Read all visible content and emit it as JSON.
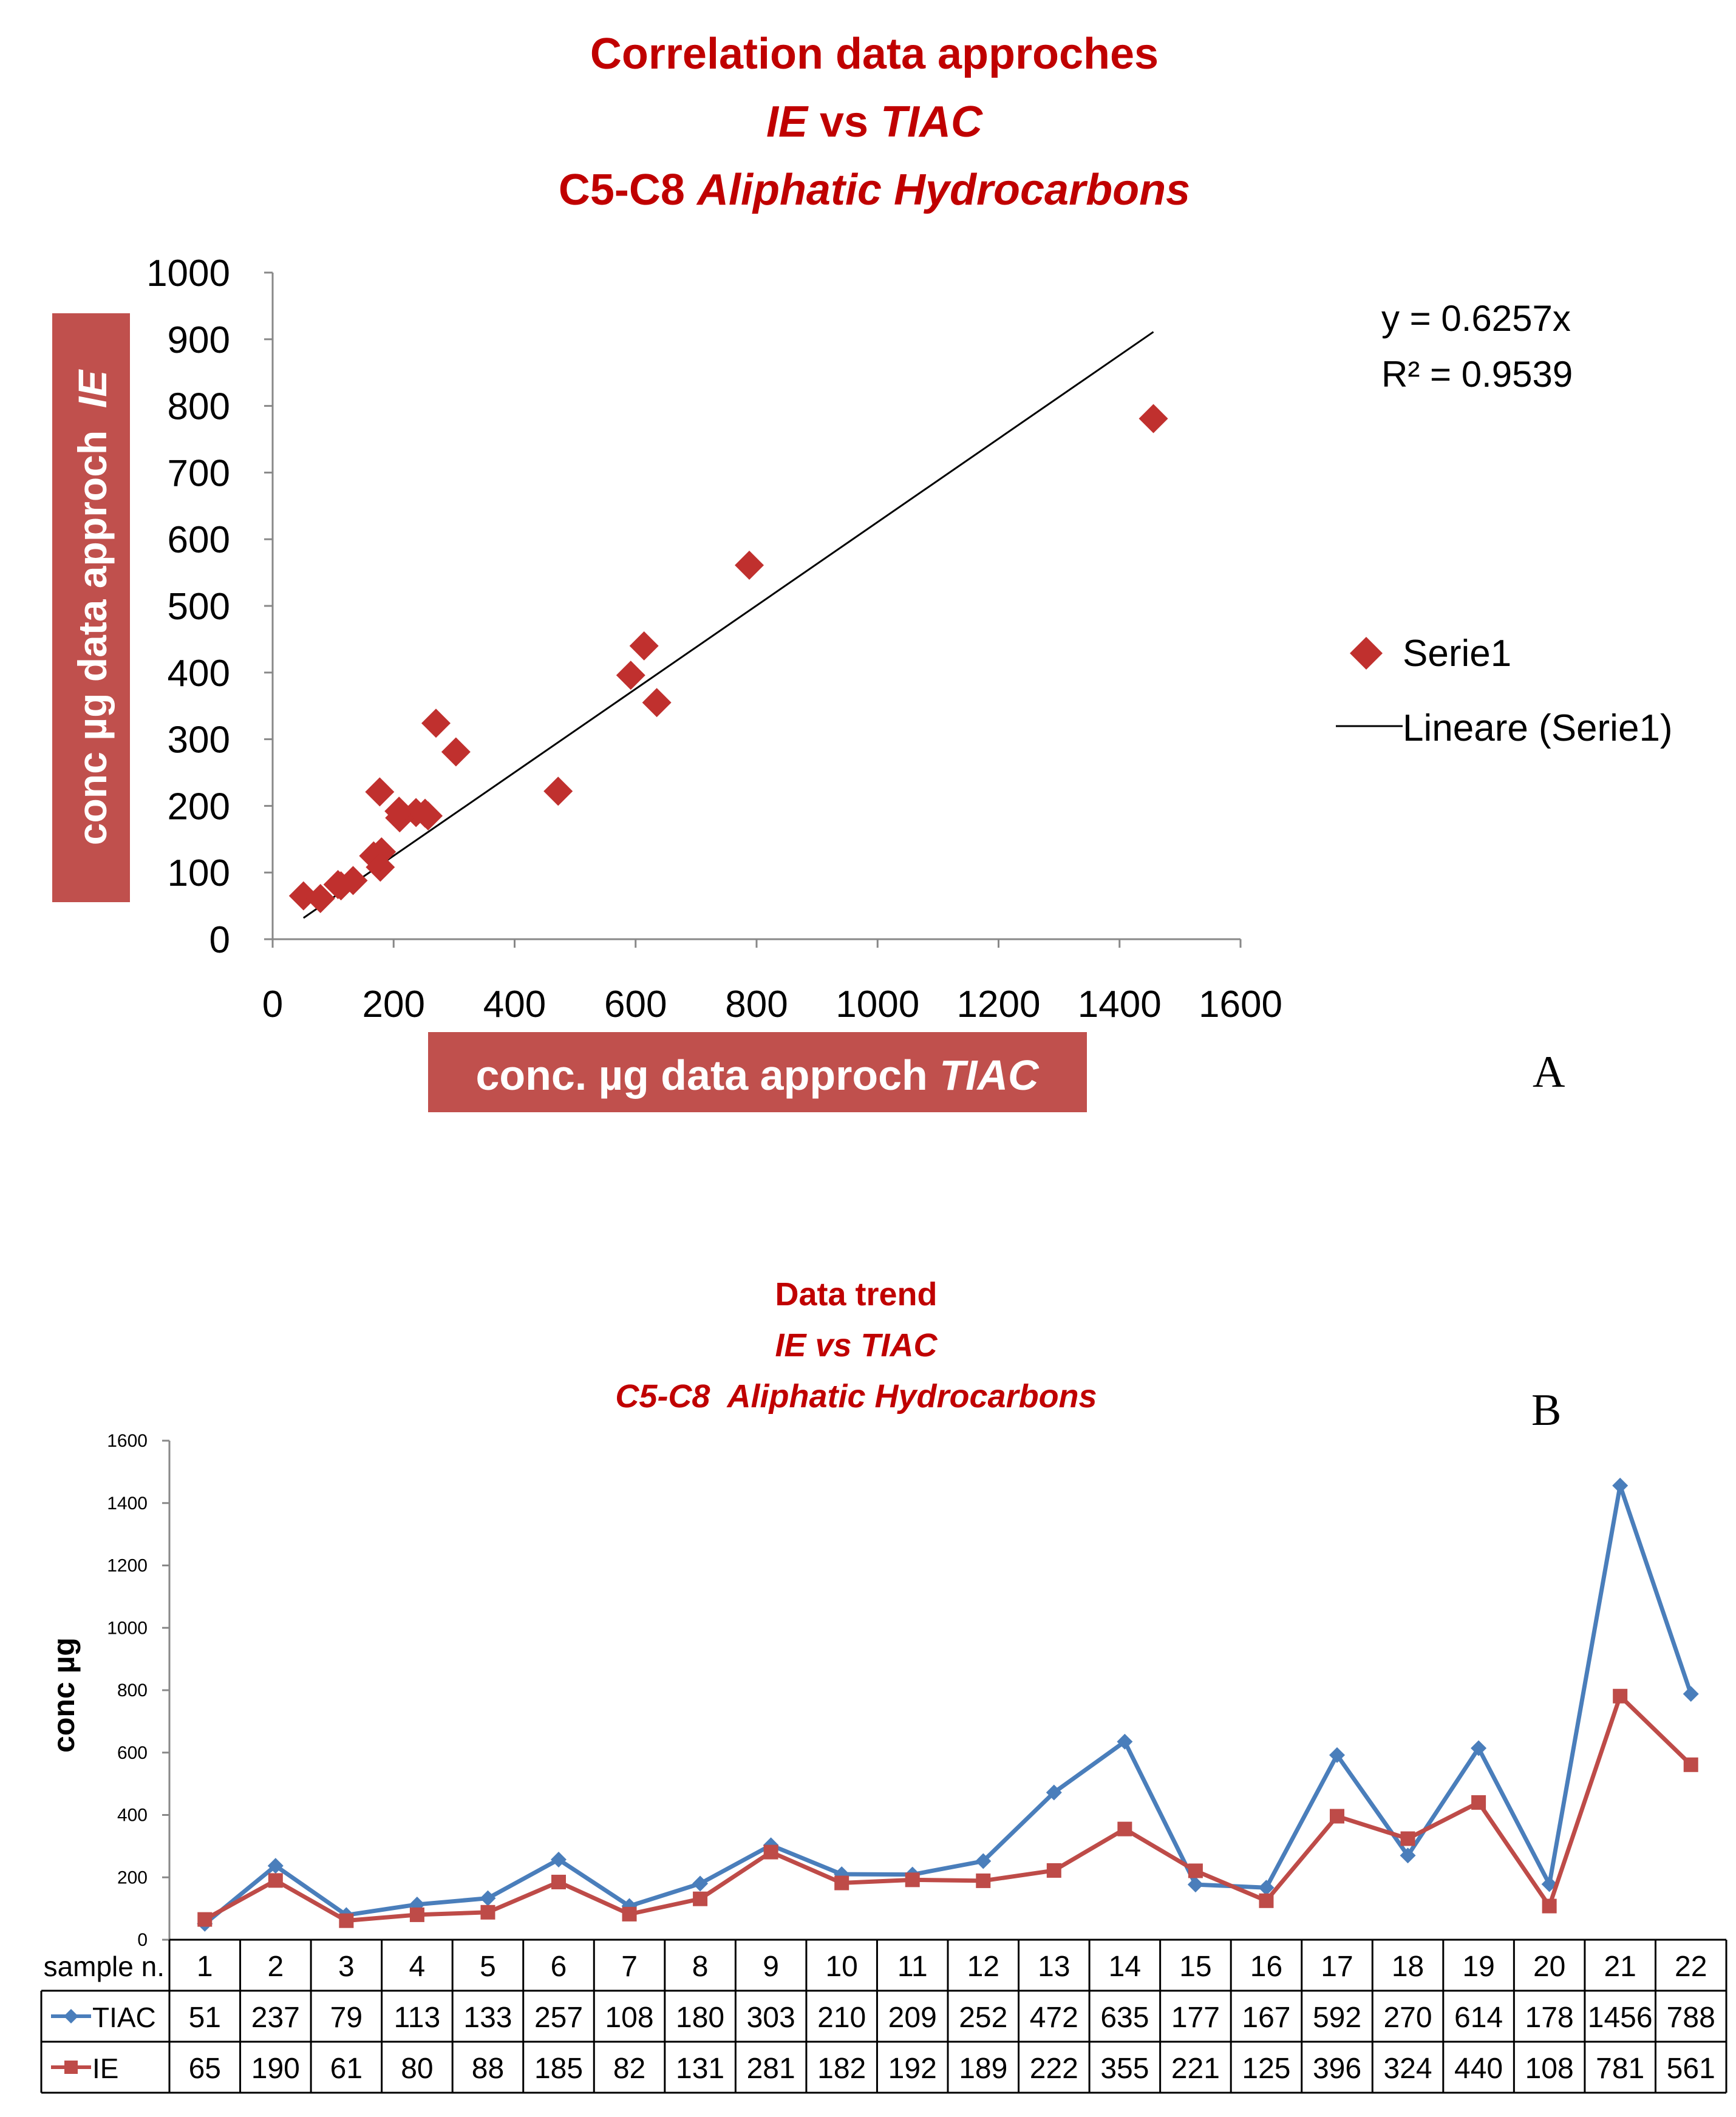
{
  "chart_data": [
    {
      "panel": "A",
      "type": "scatter",
      "title_line1": "Correlation data approches",
      "title_line2_a": "IE",
      "title_line2_b": " vs ",
      "title_line2_c": "TIAC",
      "title_line3_a": "C5-C8 ",
      "title_line3_b": "Aliphatic Hydrocarbons",
      "xlabel_a": "conc. µg data approch ",
      "xlabel_b": "TIAC",
      "ylabel_a": "conc µg data approch  ",
      "ylabel_b": "IE",
      "xlim": [
        0,
        1600
      ],
      "ylim": [
        0,
        1000
      ],
      "xticks": [
        0,
        200,
        400,
        600,
        800,
        1000,
        1200,
        1400,
        1600
      ],
      "yticks": [
        0,
        100,
        200,
        300,
        400,
        500,
        600,
        700,
        800,
        900,
        1000
      ],
      "x": [
        51,
        237,
        79,
        113,
        133,
        257,
        108,
        180,
        303,
        210,
        209,
        252,
        472,
        635,
        177,
        167,
        592,
        270,
        614,
        178,
        1456,
        788
      ],
      "y": [
        65,
        190,
        61,
        80,
        88,
        185,
        82,
        131,
        281,
        182,
        192,
        189,
        222,
        355,
        221,
        125,
        396,
        324,
        440,
        108,
        781,
        561
      ],
      "trendline": {
        "slope": 0.6257,
        "x_start": 51,
        "x_end": 1456
      },
      "equation": "y = 0.6257x",
      "r2": "R² = 0.9539",
      "legend": {
        "series": "Serie1",
        "trend": "Lineare (Serie1)"
      },
      "marker_color": "#c0302e",
      "label_bg": "#c0504d",
      "letter": "A"
    },
    {
      "panel": "B",
      "type": "line",
      "title_line1": "Data trend",
      "title_line2": "IE vs TIAC",
      "title_line3": "C5-C8  Aliphatic Hydrocarbons",
      "ylabel": "conc µg",
      "ylim": [
        0,
        1600
      ],
      "yticks": [
        0,
        200,
        400,
        600,
        800,
        1000,
        1200,
        1400,
        1600
      ],
      "row_header": "sample n.",
      "categories": [
        "1",
        "2",
        "3",
        "4",
        "5",
        "6",
        "7",
        "8",
        "9",
        "10",
        "11",
        "12",
        "13",
        "14",
        "15",
        "16",
        "17",
        "18",
        "19",
        "20",
        "21",
        "22"
      ],
      "series": [
        {
          "name": "TIAC",
          "color": "#4a7ebb",
          "marker": "diamond",
          "values": [
            51,
            237,
            79,
            113,
            133,
            257,
            108,
            180,
            303,
            210,
            209,
            252,
            472,
            635,
            177,
            167,
            592,
            270,
            614,
            178,
            1456,
            788
          ]
        },
        {
          "name": "IE",
          "color": "#be4b48",
          "marker": "square",
          "values": [
            65,
            190,
            61,
            80,
            88,
            185,
            82,
            131,
            281,
            182,
            192,
            189,
            222,
            355,
            221,
            125,
            396,
            324,
            440,
            108,
            781,
            561
          ]
        }
      ],
      "letter": "B"
    }
  ]
}
